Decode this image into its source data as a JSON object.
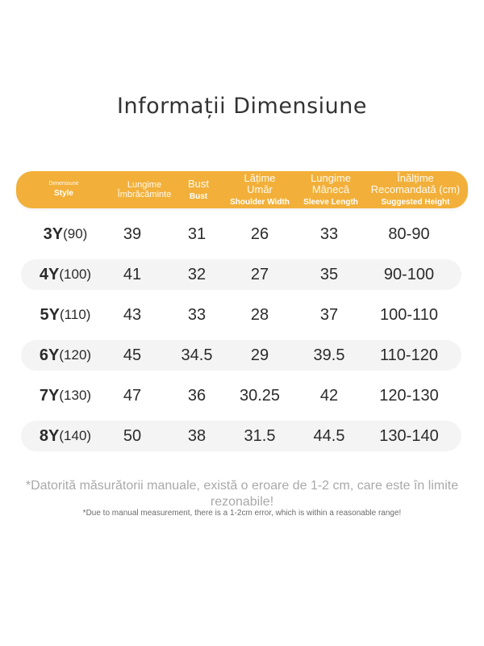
{
  "title": "Informații Dimensiune",
  "header": {
    "style": {
      "ro": "Dimensiune",
      "en": "Style"
    },
    "length": {
      "ro": "Lungime Îmbrăcăminte"
    },
    "bust": {
      "ro": "Bust",
      "en": "Bust"
    },
    "shoulder": {
      "ro": "Lățime Umăr",
      "en": "Shoulder Width"
    },
    "sleeve": {
      "ro": "Lungime Mânecă",
      "en": "Sleeve Length"
    },
    "height": {
      "ro": "Înălțime Recomandată (cm)",
      "en": "Suggested Height"
    }
  },
  "rows": [
    {
      "code": "3Y",
      "num": "(90)",
      "length": "39",
      "bust": "31",
      "shoulder": "26",
      "sleeve": "33",
      "height": "80-90"
    },
    {
      "code": "4Y",
      "num": "(100)",
      "length": "41",
      "bust": "32",
      "shoulder": "27",
      "sleeve": "35",
      "height": "90-100"
    },
    {
      "code": "5Y",
      "num": "(110)",
      "length": "43",
      "bust": "33",
      "shoulder": "28",
      "sleeve": "37",
      "height": "100-110"
    },
    {
      "code": "6Y",
      "num": "(120)",
      "length": "45",
      "bust": "34.5",
      "shoulder": "29",
      "sleeve": "39.5",
      "height": "110-120"
    },
    {
      "code": "7Y",
      "num": "(130)",
      "length": "47",
      "bust": "36",
      "shoulder": "30.25",
      "sleeve": "42",
      "height": "120-130"
    },
    {
      "code": "8Y",
      "num": "(140)",
      "length": "50",
      "bust": "38",
      "shoulder": "31.5",
      "sleeve": "44.5",
      "height": "130-140"
    }
  ],
  "note_ro": "*Datorită măsurătorii manuale, există o eroare de 1-2 cm, care este în limite rezonabile!",
  "note_en": "*Due to manual measurement, there is a 1-2cm error, which is within a reasonable range!",
  "colors": {
    "header": "#f2b03a",
    "row_shade": "#f4f4f4",
    "text": "#2b2b2b",
    "note": "#a9a9a9"
  }
}
